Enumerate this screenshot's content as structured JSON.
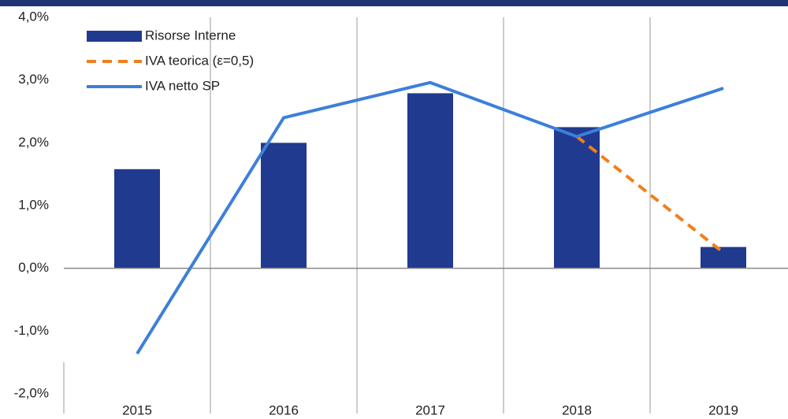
{
  "chart_data": {
    "type": "bar-line",
    "categories": [
      "2015",
      "2016",
      "2017",
      "2018",
      "2019"
    ],
    "series": [
      {
        "name": "Risorse Interne",
        "kind": "bar",
        "color": "#203a8f",
        "values": [
          1.58,
          2.0,
          2.79,
          2.25,
          0.34
        ]
      },
      {
        "name": "IVA teorica (ε=0,5)",
        "kind": "dashed-line",
        "color": "#f07f1c",
        "values": [
          null,
          null,
          null,
          2.1,
          0.25
        ]
      },
      {
        "name": "IVA netto SP",
        "kind": "line",
        "color": "#3d7fd9",
        "values": [
          -1.36,
          2.4,
          2.96,
          2.1,
          2.87
        ]
      }
    ],
    "ylim": [
      -2,
      4
    ],
    "yticks": [
      {
        "value": -2,
        "label": "-2,0%"
      },
      {
        "value": -1,
        "label": "-1,0%"
      },
      {
        "value": 0,
        "label": "0,0%"
      },
      {
        "value": 1,
        "label": "1,0%"
      },
      {
        "value": 2,
        "label": "2,0%"
      },
      {
        "value": 3,
        "label": "3,0%"
      },
      {
        "value": 4,
        "label": "4,0%"
      }
    ],
    "grid": "vertical",
    "legend": "upper left"
  }
}
